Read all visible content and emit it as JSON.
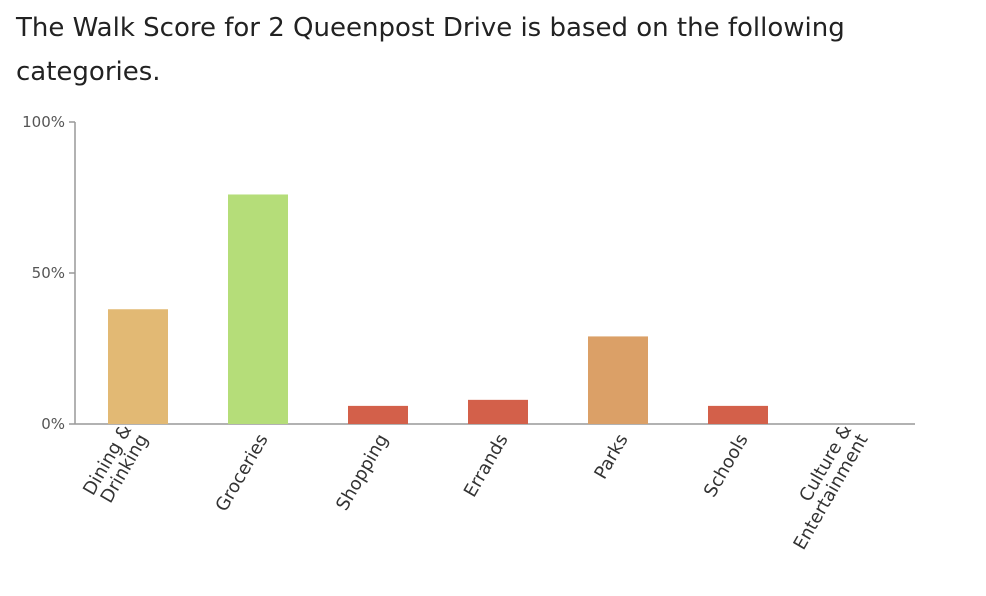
{
  "heading": "The Walk Score for 2 Queenpost Drive is based on the following categories.",
  "chart_data": {
    "type": "bar",
    "title": "",
    "xlabel": "",
    "ylabel": "",
    "ylim": [
      0,
      100
    ],
    "y_ticks": [
      {
        "value": 0,
        "label": "0%"
      },
      {
        "value": 50,
        "label": "50%"
      },
      {
        "value": 100,
        "label": "100%"
      }
    ],
    "categories": [
      [
        "Dining &",
        "Drinking"
      ],
      [
        "Groceries"
      ],
      [
        "Shopping"
      ],
      [
        "Errands"
      ],
      [
        "Parks"
      ],
      [
        "Schools"
      ],
      [
        "Culture &",
        "Entertainment"
      ]
    ],
    "values": [
      38,
      76,
      6,
      8,
      29,
      6,
      0
    ],
    "colors": [
      "#e2b974",
      "#b5dd79",
      "#d3604a",
      "#d3604a",
      "#dba067",
      "#d3604a",
      "#d3604a"
    ],
    "grid": false,
    "legend": "none",
    "axis_color": "#999999"
  }
}
